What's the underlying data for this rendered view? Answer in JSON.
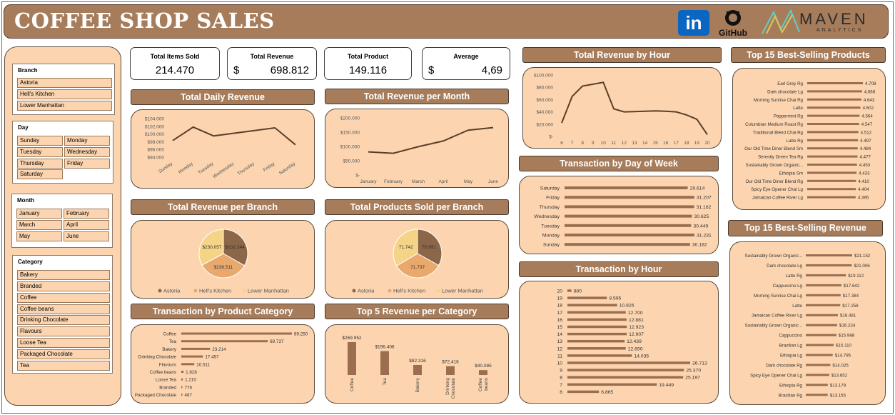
{
  "header": {
    "title": "COFFEE SHOP SALES",
    "linkedin": "in",
    "github": "GitHub",
    "maven": "MAVEN",
    "maven_sub": "ANALYTICS"
  },
  "kpis": {
    "items_label": "Total Items Sold",
    "items_value": "214.470",
    "revenue_label": "Total Revenue",
    "revenue_currency": "$",
    "revenue_value": "698.812",
    "product_label": "Total Product",
    "product_value": "149.116",
    "avg_label": "Average",
    "avg_currency": "$",
    "avg_value": "4,69"
  },
  "slicers": {
    "branch": {
      "header": "Branch",
      "items": [
        "Astoria",
        "Hell's Kitchen",
        "Lower Manhattan"
      ]
    },
    "day": {
      "header": "Day",
      "items": [
        "Sunday",
        "Monday",
        "Tuesday",
        "Wednesday",
        "Thursday",
        "Friday",
        "Saturday"
      ]
    },
    "month": {
      "header": "Month",
      "items": [
        "January",
        "February",
        "March",
        "April",
        "May",
        "June"
      ]
    },
    "category": {
      "header": "Category",
      "items": [
        "Bakery",
        "Branded",
        "Coffee",
        "Coffee beans",
        "Drinking Chocolate",
        "Flavours",
        "Loose Tea",
        "Packaged Chocolate",
        "Tea"
      ]
    }
  },
  "colors": {
    "brown": "#a67c5b",
    "dark": "#5a3f28",
    "panel": "#fcd5b0",
    "bar": "#9a6e4e",
    "pie1": "#8b6648",
    "pie2": "#e9a86c",
    "pie3": "#f5d487"
  },
  "chart_data": [
    {
      "id": "daily",
      "type": "line",
      "title": "Total Daily Revenue",
      "categories": [
        "Sunday",
        "Monday",
        "Tuesday",
        "Wednesday",
        "Thursday",
        "Friday",
        "Saturday"
      ],
      "values": [
        98300,
        101800,
        99500,
        100200,
        100900,
        101600,
        97200
      ],
      "ylim": [
        94000,
        104000
      ],
      "yticks": [
        "$104.000",
        "$102.000",
        "$100.000",
        "$98.000",
        "$96.000",
        "$94.000"
      ]
    },
    {
      "id": "month",
      "type": "line",
      "title": "Total Revenue per Month",
      "categories": [
        "January",
        "February",
        "March",
        "April",
        "May",
        "June"
      ],
      "values": [
        81000,
        76000,
        99000,
        119000,
        157000,
        166000
      ],
      "ylim": [
        0,
        200000
      ],
      "yticks": [
        "$200.000",
        "$150.000",
        "$100.000",
        "$50.000",
        "$-"
      ]
    },
    {
      "id": "hourrev",
      "type": "line",
      "title": "Total Revenue by Hour",
      "categories": [
        "6",
        "7",
        "8",
        "9",
        "10",
        "11",
        "12",
        "13",
        "14",
        "15",
        "16",
        "17",
        "18",
        "19",
        "20"
      ],
      "values": [
        22000,
        65000,
        82000,
        85000,
        88000,
        45000,
        40000,
        40500,
        41000,
        41500,
        41000,
        40000,
        35000,
        28000,
        3000
      ],
      "ylim": [
        0,
        100000
      ],
      "yticks": [
        "$100.000",
        "$80.000",
        "$60.000",
        "$40.000",
        "$20.000",
        "$-"
      ]
    },
    {
      "id": "branchrev",
      "type": "pie",
      "title": "Total Revenue per Branch",
      "labels": [
        "Astoria",
        "Hell's Kitchen",
        "Lower Manhattan"
      ],
      "values": [
        232244,
        236511,
        230057
      ],
      "value_labels": [
        "$232.244",
        "$236.511",
        "$230.057"
      ]
    },
    {
      "id": "branchprod",
      "type": "pie",
      "title": "Total Products Sold per Branch",
      "labels": [
        "Astoria",
        "Hell's Kitchen",
        "Lower Manhattan"
      ],
      "values": [
        70991,
        71737,
        71742
      ],
      "value_labels": [
        "70.991",
        "71.737",
        "71.742"
      ]
    },
    {
      "id": "txcat",
      "type": "bar",
      "title": "Transaction by Product Category",
      "categories": [
        "Coffee",
        "Tea",
        "Bakery",
        "Drinking Chocolate",
        "Flavours",
        "Coffee beans",
        "Loose Tea",
        "Branded",
        "Packaged Chocolate"
      ],
      "values": [
        89250,
        69737,
        23214,
        17457,
        10511,
        1828,
        1210,
        776,
        487
      ],
      "value_labels": [
        "89.250",
        "69.737",
        "23.214",
        "17.457",
        "10.511",
        "1.828",
        "1.210",
        "776",
        "487"
      ]
    },
    {
      "id": "top5",
      "type": "bar",
      "title": "Top 5 Revenue per Category",
      "categories": [
        "Coffee",
        "Tea",
        "Bakery",
        "Drinking Chocolate",
        "Coffee beans"
      ],
      "values": [
        269952,
        196406,
        82316,
        72416,
        40085
      ],
      "value_labels": [
        "$269.952",
        "$196.406",
        "$82.316",
        "$72.416",
        "$40.085"
      ]
    },
    {
      "id": "dow",
      "type": "bar",
      "title": "Transaction by Day of Week",
      "categories": [
        "Saturday",
        "Friday",
        "Thursday",
        "Wednesday",
        "Tuesday",
        "Monday",
        "Sunday"
      ],
      "values": [
        29614,
        31207,
        31162,
        30625,
        30449,
        31231,
        30182
      ],
      "value_labels": [
        "29.614",
        "31.207",
        "31.162",
        "30.625",
        "30.449",
        "31.231",
        "30.182"
      ]
    },
    {
      "id": "txhour",
      "type": "bar",
      "title": "Transaction by Hour",
      "categories": [
        "20",
        "19",
        "18",
        "17",
        "16",
        "15",
        "14",
        "13",
        "12",
        "11",
        "10",
        "9",
        "8",
        "7",
        "6"
      ],
      "values": [
        880,
        8595,
        10826,
        12700,
        12881,
        12923,
        12907,
        12439,
        12690,
        14035,
        26713,
        25370,
        25197,
        19449,
        6865
      ],
      "value_labels": [
        "880",
        "8.595",
        "10.826",
        "12.700",
        "12.881",
        "12.923",
        "12.907",
        "12.439",
        "12.690",
        "14.035",
        "26.713",
        "25.370",
        "25.197",
        "19.449",
        "6.865"
      ]
    },
    {
      "id": "top15p",
      "type": "bar",
      "title": "Top 15 Best-Selling Products",
      "categories": [
        "Earl Grey Rg",
        "Dark chocolate Lg",
        "Morning Sunrise Chai Rg",
        "Latte",
        "Peppermint Rg",
        "Columbian Medium Roast Rg",
        "Traditional Blend Chai Rg",
        "Latte Rg",
        "Our Old Time Diner Blend Sm",
        "Serenity Green Tea Rg",
        "Sustainably Grown Organic...",
        "Ethiopia Sm",
        "Our Old Time Diner Blend Rg",
        "Spicy Eye Opener Chai Lg",
        "Jamaican Coffee River Lg"
      ],
      "values": [
        4708,
        4668,
        4643,
        4602,
        4564,
        4547,
        4512,
        4497,
        4484,
        4477,
        4453,
        4433,
        4410,
        4404,
        4395
      ],
      "value_labels": [
        "4.708",
        "4.668",
        "4.643",
        "4.602",
        "4.564",
        "4.547",
        "4.512",
        "4.497",
        "4.484",
        "4.477",
        "4.453",
        "4.433",
        "4.410",
        "4.404",
        "4.395"
      ]
    },
    {
      "id": "top15r",
      "type": "bar",
      "title": "Top 15 Best-Selling Revenue",
      "categories": [
        "Sustainably Grown Organic...",
        "Dark chocolate Lg",
        "Latte Rg",
        "Cappuccino Lg",
        "Morning Sunrise Chai Lg",
        "Latte",
        "Jamaican Coffee River Lg",
        "Sustainably Grown Organic...",
        "Cappuccino",
        "Brazilian Lg",
        "Ethiopia Lg",
        "Dark chocolate Rg",
        "Spicy Eye Opener Chai Lg",
        "Ethiopia Rg",
        "Brazilian Rg"
      ],
      "values": [
        21152,
        21006,
        19112,
        17642,
        17384,
        17258,
        16481,
        16234,
        15998,
        15110,
        14795,
        14025,
        13652,
        13179,
        13155
      ],
      "value_labels": [
        "$21.152",
        "$21.006",
        "$19.112",
        "$17.642",
        "$17.384",
        "$17.258",
        "$16.481",
        "$16.234",
        "$15.998",
        "$15.110",
        "$14.795",
        "$14.025",
        "$13.652",
        "$13.179",
        "$13.155"
      ]
    }
  ]
}
